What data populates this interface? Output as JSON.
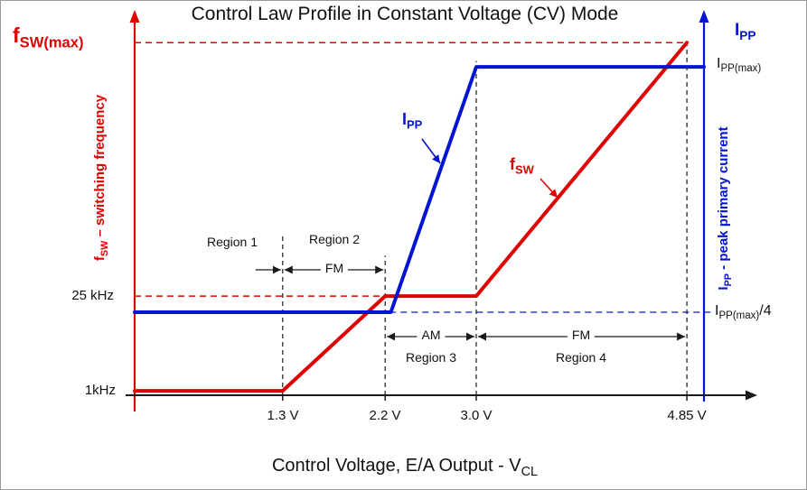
{
  "labels": {
    "fswmax_axis": {
      "pre": "f",
      "sub": "SW(max)"
    },
    "left_axis_title": {
      "pre": "f",
      "sub": "SW",
      "post": " – switching frequency"
    },
    "tick_25khz": "25 kHz",
    "tick_1khz": "1kHz",
    "ipp_axis_top": {
      "pre": "I",
      "sub": "PP"
    },
    "right_axis_title": {
      "pre": "I",
      "sub": "PP",
      "post": " - peak primary current"
    },
    "ippmax": {
      "pre": "I",
      "sub": "PP(max)"
    },
    "ippmax_quarter": {
      "pre": "I",
      "sub": "PP(max)",
      "post": "/4"
    },
    "curve_ipp": {
      "pre": "I",
      "sub": "PP"
    },
    "curve_fsw": {
      "pre": "f",
      "sub": "SW"
    },
    "xlabel": {
      "pre": "Control Voltage, E/A Output - V",
      "sub": "CL"
    }
  },
  "chart_data": {
    "type": "line",
    "title": "Control Law Profile in Constant Voltage (CV) Mode",
    "xlabel": "Control Voltage, E/A Output - VCL",
    "x_unit": "V",
    "xlim": [
      0,
      5.0
    ],
    "ylim_norm": [
      0,
      100
    ],
    "grid": false,
    "x_ticks": [
      {
        "value": 1.3,
        "label": "1.3 V"
      },
      {
        "value": 2.2,
        "label": "2.2 V"
      },
      {
        "value": 3.0,
        "label": "3.0 V"
      },
      {
        "value": 4.85,
        "label": "4.85 V"
      }
    ],
    "axes": {
      "left": {
        "label": "fSW – switching frequency",
        "color": "#e10000",
        "level_labels": [
          "fSW(max)",
          "25 kHz",
          "1kHz"
        ],
        "level_norm": [
          96,
          27,
          1.2
        ]
      },
      "right": {
        "label": "IPP - peak primary current",
        "color": "#0014d2",
        "level_labels": [
          "IPP(max)",
          "IPP(max)/4"
        ],
        "level_norm": [
          89.4,
          22.6
        ]
      }
    },
    "series": [
      {
        "name": "fSW",
        "axis": "left",
        "color": "#e10000",
        "points_x_V": [
          0,
          1.3,
          2.2,
          3.0,
          4.85
        ],
        "points_y_norm": [
          1.2,
          1.2,
          27,
          27,
          96
        ],
        "points_y_value": [
          "1kHz",
          "1kHz",
          "25 kHz",
          "25 kHz",
          "fSW(max)"
        ]
      },
      {
        "name": "IPP",
        "axis": "right",
        "color": "#0014d2",
        "points_x_V": [
          0,
          2.25,
          3.0,
          5.0
        ],
        "points_y_norm": [
          22.6,
          22.6,
          89.4,
          89.4
        ],
        "points_y_value": [
          "IPP(max)/4",
          "IPP(max)/4",
          "IPP(max)",
          "IPP(max)"
        ]
      }
    ],
    "reference_lines_h": [
      {
        "y_norm": 96,
        "x_from_V": 0,
        "x_to_V": 4.85,
        "color": "#e10000",
        "style": "dashed",
        "label": "fSW(max)"
      },
      {
        "y_norm": 27,
        "x_from_V": 0,
        "x_to_V": 2.2,
        "color": "#e10000",
        "style": "dashed",
        "label": "25 kHz"
      },
      {
        "y_norm": 22.6,
        "x_from_V": 2.24,
        "x_to_V": 5.08,
        "color": "#2a41d4",
        "style": "dashed",
        "label": "IPP(max)/4"
      }
    ],
    "guides_v": [
      {
        "x_V": 1.3,
        "y_top_norm": 44
      },
      {
        "x_V": 2.2,
        "y_top_norm": 38
      },
      {
        "x_V": 3.0,
        "y_top_norm": 91
      },
      {
        "x_V": 4.85,
        "y_top_norm": 96
      }
    ],
    "regions": [
      {
        "name": "Region 1",
        "x_from_V": 0,
        "x_to_V": 1.3,
        "modulation": ""
      },
      {
        "name": "Region 2",
        "x_from_V": 1.3,
        "x_to_V": 2.2,
        "modulation": "FM"
      },
      {
        "name": "Region 3",
        "x_from_V": 2.2,
        "x_to_V": 3.0,
        "modulation": "AM"
      },
      {
        "name": "Region 4",
        "x_from_V": 3.0,
        "x_to_V": 4.85,
        "modulation": "FM"
      }
    ]
  }
}
